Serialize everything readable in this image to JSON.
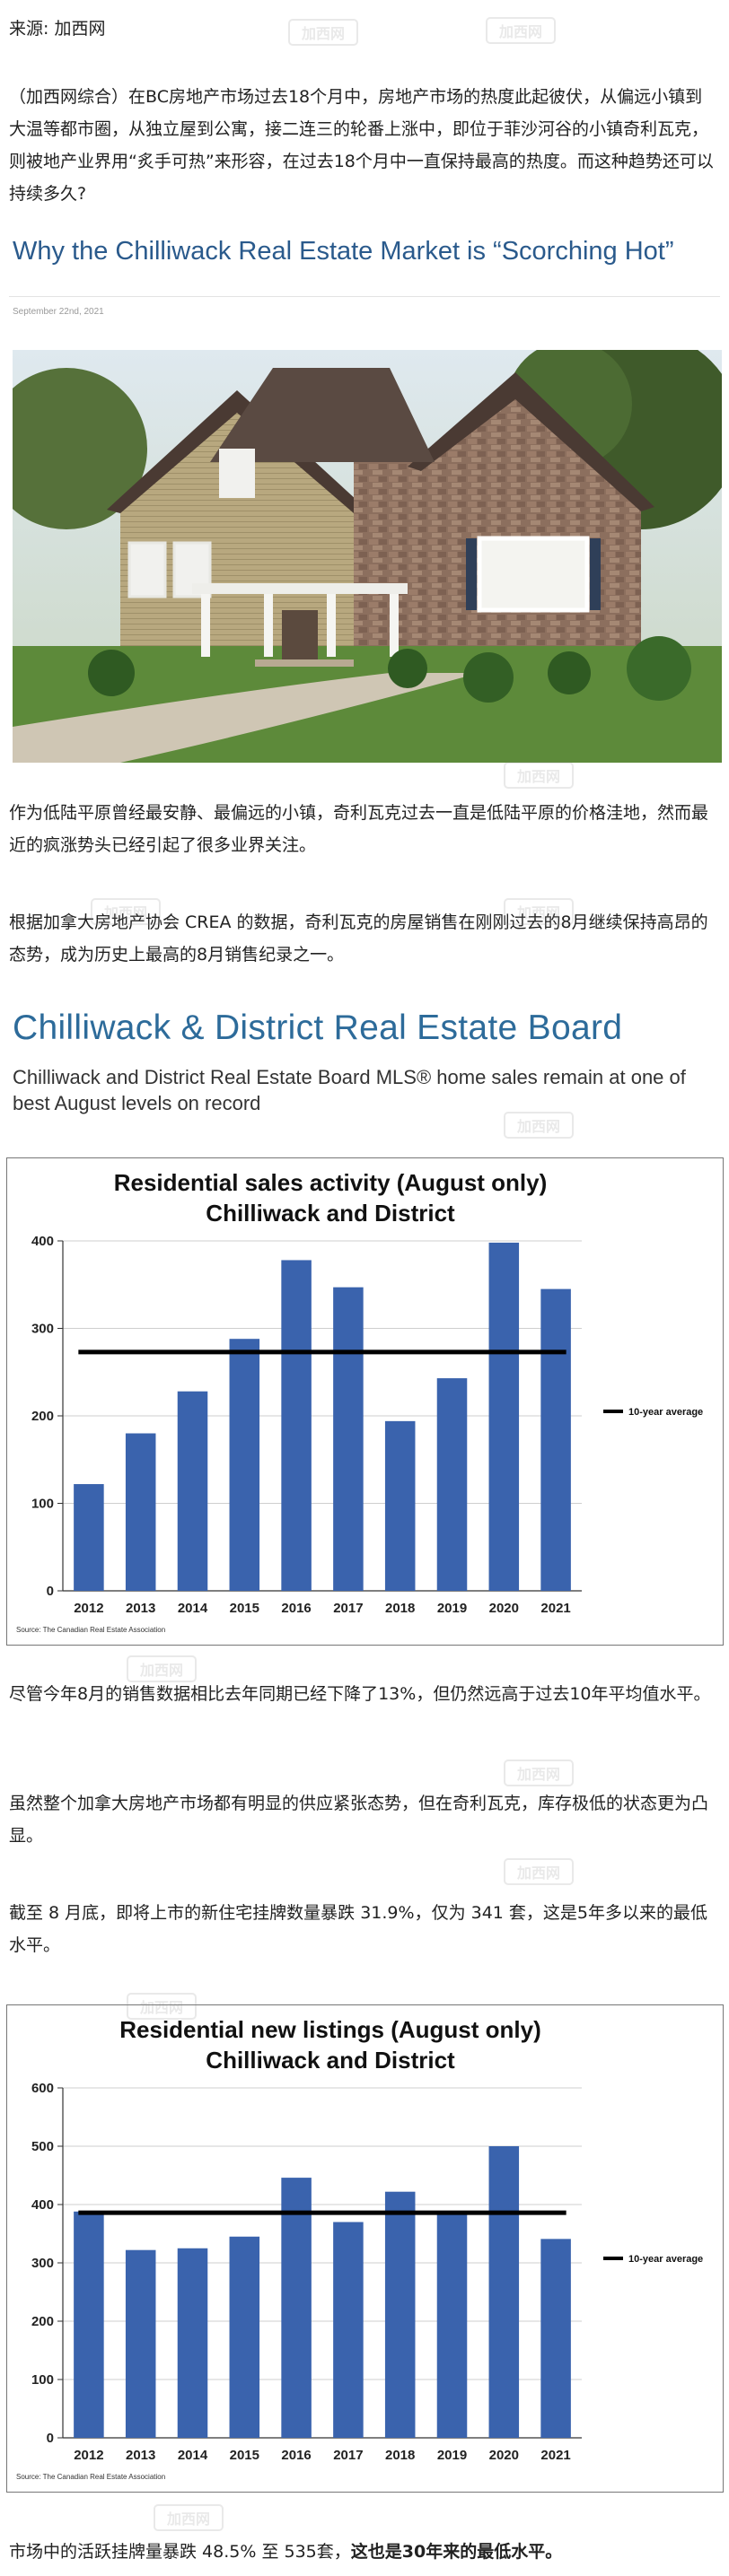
{
  "source": "来源: 加西网",
  "intro": "（加西网综合）在BC房地产市场过去18个月中，房地产市场的热度此起彼伏，从偏远小镇到大温等都市圈，从独立屋到公寓，接二连三的轮番上涨中，即位于菲沙河谷的小镇奇利瓦克，则被地产业界用“炙手可热”来形容，在过去18个月中一直保持最高的热度。而这种趋势还可以持续多久?",
  "banner": {
    "title": "Why the Chilliwack Real Estate Market is “Scorching Hot”",
    "date": "September 22nd, 2021"
  },
  "para1": "作为低陆平原曾经最安静、最偏远的小镇，奇利瓦克过去一直是低陆平原的价格洼地，然而最近的疯涨势头已经引起了很多业界关注。",
  "para2": "根据加拿大房地产协会 CREA 的数据，奇利瓦克的房屋销售在刚刚过去的8月继续保持高昂的态势，成为历史上最高的8月销售纪录之一。",
  "crea": {
    "title": "Chilliwack & District Real Estate Board",
    "subtitle": "Chilliwack and District Real Estate Board MLS® home sales remain at one of best August levels on record"
  },
  "para3": "尽管今年8月的销售数据相比去年同期已经下降了13%，但仍然远高于过去10年平均值水平。",
  "para4": "虽然整个加拿大房地产市场都有明显的供应紧张态势，但在奇利瓦克，库存极低的状态更为凸显。",
  "para5": "截至 8 月底，即将上市的新住宅挂牌数量暴跌 31.9%，仅为 341 套，这是5年多以来的最低水平。",
  "last_para": {
    "normal": "市场中的活跃挂牌量暴跌 48.5% 至 535套，",
    "bold": "这也是30年来的最低水平。"
  },
  "watermark": "加西网",
  "chart_data": [
    {
      "type": "bar",
      "title": "Residential sales activity (August only)",
      "subtitle": "Chilliwack and District",
      "categories": [
        "2012",
        "2013",
        "2014",
        "2015",
        "2016",
        "2017",
        "2018",
        "2019",
        "2020",
        "2021"
      ],
      "values": [
        122,
        180,
        228,
        288,
        378,
        347,
        194,
        243,
        398,
        345
      ],
      "ylim": [
        0,
        400
      ],
      "yticks": [
        "0",
        "100",
        "200",
        "300",
        "400"
      ],
      "average": 273,
      "legend": "10-year average",
      "legend_position": "right",
      "source": "Source: The Canadian Real Estate Association",
      "bar_color": "#3a63ad",
      "grid": true
    },
    {
      "type": "bar",
      "title": "Residential new listings (August only)",
      "subtitle": "Chilliwack and District",
      "categories": [
        "2012",
        "2013",
        "2014",
        "2015",
        "2016",
        "2017",
        "2018",
        "2019",
        "2020",
        "2021"
      ],
      "values": [
        388,
        322,
        325,
        345,
        446,
        370,
        422,
        388,
        500,
        341
      ],
      "ylim": [
        0,
        600
      ],
      "yticks": [
        "0",
        "100",
        "200",
        "300",
        "400",
        "500",
        "600"
      ],
      "average": 386,
      "legend": "10-year average",
      "legend_position": "right",
      "source": "Source: The Canadian Real Estate Association",
      "bar_color": "#3a63ad",
      "grid": true
    }
  ]
}
